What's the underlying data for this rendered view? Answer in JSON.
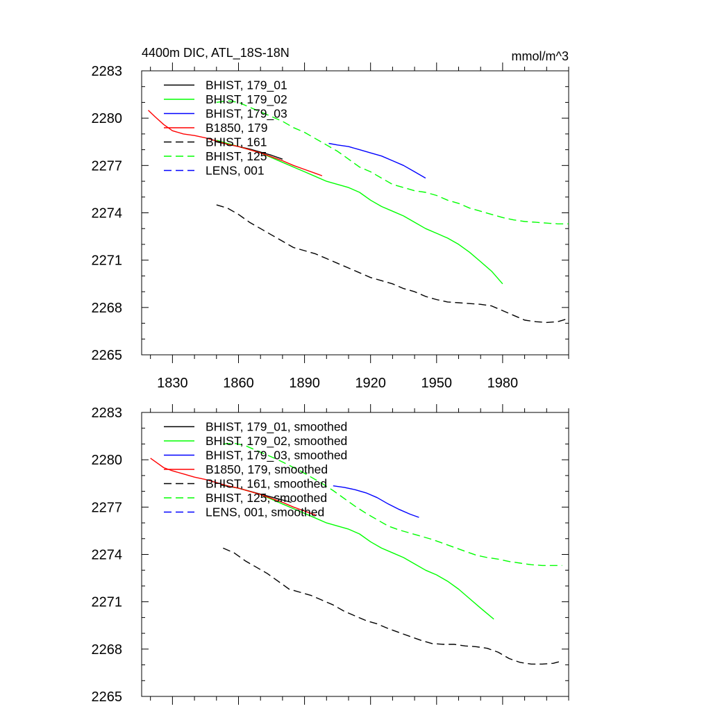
{
  "figure": {
    "title": "4400m DIC, ATL_18S-18N",
    "units": "mmol/m^3"
  },
  "chart_data": [
    {
      "type": "line",
      "panel": "top",
      "title": "4400m DIC, ATL_18S-18N",
      "units": "mmol/m^3",
      "xlim": [
        1816,
        2010
      ],
      "ylim": [
        2265,
        2283
      ],
      "xticks": [
        1830,
        1860,
        1890,
        1920,
        1950,
        1980
      ],
      "xtick_labels": [
        "1830",
        "1860",
        "1890",
        "1920",
        "1950",
        "1980"
      ],
      "yticks": [
        2265,
        2268,
        2271,
        2274,
        2277,
        2280,
        2283
      ],
      "ytick_labels": [
        "2265",
        "2268",
        "2271",
        "2274",
        "2277",
        "2280",
        "2283"
      ],
      "legend_position": "top-left",
      "series": [
        {
          "name": "BHIST, 179_01",
          "color": "#000000",
          "dash": "solid",
          "x": [
            1850,
            1855,
            1860,
            1865,
            1870,
            1875,
            1880
          ],
          "y": [
            2278.5,
            2278.35,
            2278.2,
            2278.05,
            2277.85,
            2277.65,
            2277.4
          ]
        },
        {
          "name": "BHIST, 179_02",
          "color": "#00ff00",
          "dash": "solid",
          "x": [
            1850,
            1855,
            1860,
            1865,
            1870,
            1875,
            1880,
            1885,
            1890,
            1895,
            1900,
            1905,
            1910,
            1915,
            1920,
            1925,
            1930,
            1935,
            1940,
            1945,
            1950,
            1955,
            1960,
            1965,
            1970,
            1975,
            1980
          ],
          "y": [
            2278.6,
            2278.4,
            2278.2,
            2278.0,
            2277.8,
            2277.5,
            2277.2,
            2276.9,
            2276.6,
            2276.3,
            2276.0,
            2275.8,
            2275.6,
            2275.3,
            2274.8,
            2274.4,
            2274.1,
            2273.8,
            2273.4,
            2273.0,
            2272.7,
            2272.4,
            2272.0,
            2271.5,
            2270.9,
            2270.3,
            2269.5
          ]
        },
        {
          "name": "BHIST, 179_03",
          "color": "#0000ff",
          "dash": "solid",
          "x": [
            1901,
            1905,
            1910,
            1915,
            1920,
            1925,
            1930,
            1935,
            1940,
            1945
          ],
          "y": [
            2278.4,
            2278.3,
            2278.2,
            2278.0,
            2277.8,
            2277.6,
            2277.3,
            2277.0,
            2276.6,
            2276.2
          ]
        },
        {
          "name": "B1850, 179",
          "color": "#ff0000",
          "dash": "solid",
          "x": [
            1819,
            1822,
            1826,
            1830,
            1835,
            1840,
            1845,
            1850,
            1855,
            1860,
            1865,
            1870,
            1875,
            1880,
            1885,
            1890,
            1895,
            1898
          ],
          "y": [
            2280.5,
            2280.1,
            2279.6,
            2279.2,
            2279.0,
            2278.9,
            2278.75,
            2278.55,
            2278.35,
            2278.2,
            2278.0,
            2277.8,
            2277.55,
            2277.3,
            2277.0,
            2276.75,
            2276.5,
            2276.35
          ]
        },
        {
          "name": "BHIST, 161",
          "color": "#000000",
          "dash": "dashed",
          "x": [
            1850,
            1855,
            1860,
            1865,
            1870,
            1875,
            1880,
            1885,
            1890,
            1895,
            1900,
            1905,
            1910,
            1915,
            1920,
            1925,
            1930,
            1935,
            1940,
            1945,
            1950,
            1955,
            1960,
            1965,
            1970,
            1975,
            1980,
            1985,
            1990,
            1995,
            2000,
            2005,
            2010
          ],
          "y": [
            2274.5,
            2274.3,
            2273.9,
            2273.4,
            2273.0,
            2272.6,
            2272.2,
            2271.8,
            2271.6,
            2271.4,
            2271.1,
            2270.8,
            2270.5,
            2270.2,
            2269.9,
            2269.7,
            2269.5,
            2269.2,
            2269.0,
            2268.7,
            2268.5,
            2268.35,
            2268.3,
            2268.25,
            2268.2,
            2268.1,
            2267.8,
            2267.5,
            2267.2,
            2267.1,
            2267.05,
            2267.1,
            2267.3
          ]
        },
        {
          "name": "BHIST, 125",
          "color": "#00ff00",
          "dash": "dashed",
          "x": [
            1850,
            1855,
            1860,
            1865,
            1870,
            1875,
            1880,
            1885,
            1890,
            1895,
            1900,
            1905,
            1910,
            1915,
            1920,
            1925,
            1930,
            1935,
            1940,
            1945,
            1950,
            1955,
            1960,
            1965,
            1970,
            1975,
            1980,
            1985,
            1990,
            1995,
            2000,
            2005,
            2010
          ],
          "y": [
            2281.0,
            2281.1,
            2281.0,
            2280.7,
            2280.4,
            2280.1,
            2279.8,
            2279.4,
            2279.1,
            2278.7,
            2278.3,
            2277.9,
            2277.4,
            2276.9,
            2276.6,
            2276.2,
            2275.8,
            2275.6,
            2275.4,
            2275.3,
            2275.1,
            2274.8,
            2274.6,
            2274.3,
            2274.1,
            2273.9,
            2273.7,
            2273.55,
            2273.45,
            2273.4,
            2273.35,
            2273.3,
            2273.3
          ]
        },
        {
          "name": "LENS, 001",
          "color": "#0000ff",
          "dash": "dashed",
          "x": [],
          "y": []
        }
      ]
    },
    {
      "type": "line",
      "panel": "bottom",
      "xlim": [
        1816,
        2010
      ],
      "ylim": [
        2265,
        2283
      ],
      "xticks": [
        1830,
        1860,
        1890,
        1920,
        1950,
        1980
      ],
      "xtick_labels": [],
      "yticks": [
        2265,
        2268,
        2271,
        2274,
        2277,
        2280,
        2283
      ],
      "ytick_labels": [
        "2265",
        "2268",
        "2271",
        "2274",
        "2277",
        "2280",
        "2283"
      ],
      "legend_position": "top-left",
      "series": [
        {
          "name": "BHIST, 179_01, smoothed",
          "color": "#000000",
          "dash": "solid",
          "x": [
            1852,
            1860,
            1868,
            1876,
            1884
          ],
          "y": [
            2278.4,
            2278.2,
            2277.9,
            2277.6,
            2277.3
          ]
        },
        {
          "name": "BHIST, 179_02, smoothed",
          "color": "#00ff00",
          "dash": "solid",
          "x": [
            1853,
            1860,
            1865,
            1870,
            1875,
            1880,
            1885,
            1890,
            1895,
            1900,
            1905,
            1910,
            1915,
            1920,
            1925,
            1930,
            1935,
            1940,
            1945,
            1950,
            1955,
            1960,
            1965,
            1970,
            1976
          ],
          "y": [
            2278.4,
            2278.2,
            2278.0,
            2277.8,
            2277.5,
            2277.2,
            2276.9,
            2276.6,
            2276.3,
            2276.0,
            2275.8,
            2275.6,
            2275.3,
            2274.8,
            2274.4,
            2274.1,
            2273.8,
            2273.4,
            2273.0,
            2272.7,
            2272.3,
            2271.8,
            2271.2,
            2270.6,
            2269.9
          ]
        },
        {
          "name": "BHIST, 179_03, smoothed",
          "color": "#0000ff",
          "dash": "solid",
          "x": [
            1903,
            1908,
            1913,
            1918,
            1923,
            1928,
            1933,
            1938,
            1942
          ],
          "y": [
            2278.35,
            2278.25,
            2278.1,
            2277.9,
            2277.6,
            2277.2,
            2276.85,
            2276.55,
            2276.35
          ]
        },
        {
          "name": "B1850, 179, smoothed",
          "color": "#ff0000",
          "dash": "solid",
          "x": [
            1820,
            1823,
            1826,
            1830,
            1835,
            1840,
            1845,
            1850,
            1855,
            1860,
            1865,
            1870,
            1875,
            1880,
            1885,
            1890,
            1895
          ],
          "y": [
            2280.1,
            2279.8,
            2279.5,
            2279.3,
            2279.1,
            2278.9,
            2278.75,
            2278.55,
            2278.35,
            2278.2,
            2278.0,
            2277.8,
            2277.55,
            2277.3,
            2277.0,
            2276.75,
            2276.5
          ]
        },
        {
          "name": "BHIST, 161, smoothed",
          "color": "#000000",
          "dash": "dashed",
          "x": [
            1853,
            1858,
            1863,
            1868,
            1873,
            1878,
            1883,
            1888,
            1893,
            1898,
            1903,
            1908,
            1913,
            1918,
            1923,
            1928,
            1933,
            1938,
            1943,
            1948,
            1953,
            1958,
            1963,
            1968,
            1973,
            1978,
            1983,
            1988,
            1993,
            1998,
            2003,
            2007
          ],
          "y": [
            2274.4,
            2274.1,
            2273.6,
            2273.2,
            2272.8,
            2272.3,
            2271.8,
            2271.6,
            2271.4,
            2271.1,
            2270.8,
            2270.4,
            2270.1,
            2269.8,
            2269.6,
            2269.3,
            2269.05,
            2268.8,
            2268.55,
            2268.35,
            2268.3,
            2268.3,
            2268.2,
            2268.15,
            2268.05,
            2267.8,
            2267.4,
            2267.15,
            2267.05,
            2267.05,
            2267.1,
            2267.25
          ]
        },
        {
          "name": "BHIST, 125, smoothed",
          "color": "#00ff00",
          "dash": "dashed",
          "x": [
            1853,
            1858,
            1863,
            1868,
            1873,
            1878,
            1883,
            1888,
            1893,
            1898,
            1903,
            1908,
            1913,
            1918,
            1923,
            1928,
            1933,
            1938,
            1943,
            1948,
            1953,
            1958,
            1963,
            1968,
            1973,
            1978,
            1983,
            1988,
            1993,
            1998,
            2003,
            2007
          ],
          "y": [
            2281.0,
            2281.05,
            2280.9,
            2280.6,
            2280.3,
            2280.0,
            2279.65,
            2279.3,
            2278.9,
            2278.5,
            2278.05,
            2277.55,
            2277.05,
            2276.6,
            2276.2,
            2275.8,
            2275.55,
            2275.35,
            2275.15,
            2274.95,
            2274.7,
            2274.45,
            2274.2,
            2273.95,
            2273.8,
            2273.7,
            2273.55,
            2273.45,
            2273.35,
            2273.3,
            2273.3,
            2273.3
          ]
        },
        {
          "name": "LENS, 001, smoothed",
          "color": "#0000ff",
          "dash": "dashed",
          "x": [],
          "y": []
        }
      ]
    }
  ]
}
